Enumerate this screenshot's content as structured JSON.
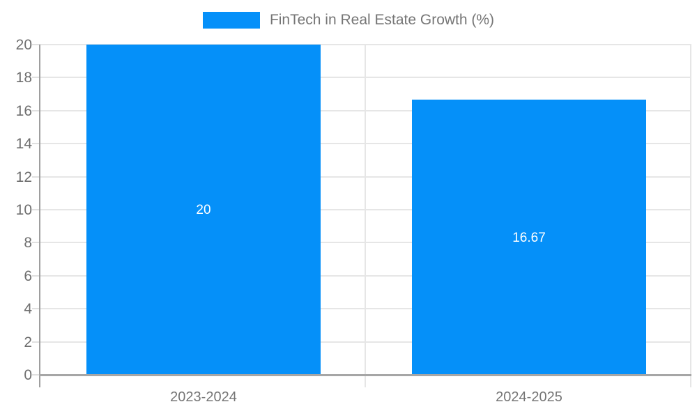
{
  "legend": {
    "label": "FinTech in Real Estate Growth (%)"
  },
  "chart_data": {
    "type": "bar",
    "title": "",
    "xlabel": "",
    "ylabel": "",
    "categories": [
      "2023-2024",
      "2024-2025"
    ],
    "series": [
      {
        "name": "FinTech in Real Estate Growth (%)",
        "values": [
          20,
          16.67
        ],
        "value_labels": [
          "20",
          "16.67"
        ]
      }
    ],
    "ylim": [
      0,
      20
    ],
    "ytick_step": 2,
    "ytick_labels": [
      "0",
      "2",
      "4",
      "6",
      "8",
      "10",
      "12",
      "14",
      "16",
      "18",
      "20"
    ],
    "grid": true,
    "legend_position": "top",
    "colors": {
      "bar": "#0590f9",
      "grid": "#e6e6e6",
      "y_axis_line": "#9e9e9e",
      "x_axis_line": "#a6a6a6",
      "tick_label": "#6e6e6e",
      "category_label": "#757575",
      "legend_text": "#757575",
      "value_label": "#ffffff",
      "background": "#ffffff"
    }
  }
}
